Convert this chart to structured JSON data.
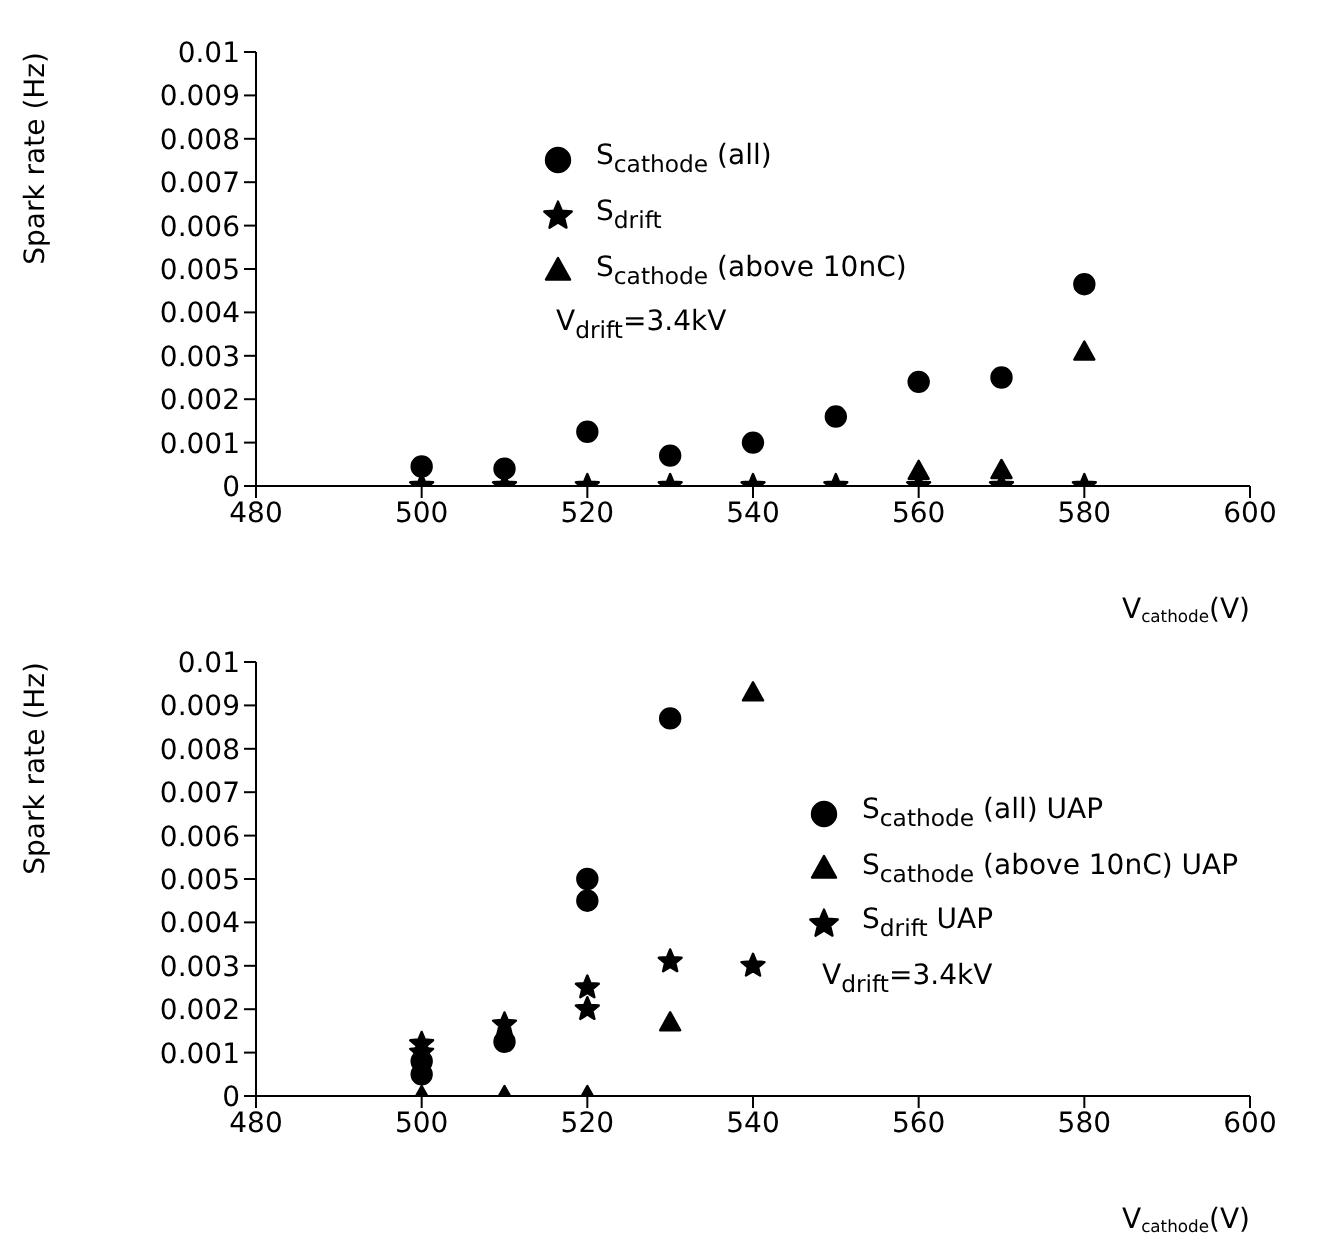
{
  "chart_data": [
    {
      "type": "scatter",
      "xlabel": "V$_{cathode}$(V)",
      "ylabel": "Spark rate (Hz)",
      "xlim": [
        480,
        600
      ],
      "xticks": [
        480,
        500,
        520,
        540,
        560,
        580,
        600
      ],
      "ylim": [
        0,
        0.01
      ],
      "yticks": [
        0,
        0.001,
        0.002,
        0.003,
        0.004,
        0.005,
        0.006,
        0.007,
        0.008,
        0.009,
        0.01
      ],
      "legend": "top left",
      "grid": false,
      "annotations": [
        "V$_{drift}$=3.4kV"
      ],
      "series": [
        {
          "name": "S$_{cathode}$ (all)",
          "color": "#000000",
          "marker": "circle",
          "x": [
            500,
            510,
            520,
            530,
            540,
            550,
            560,
            570,
            580
          ],
          "values": [
            0.00045,
            0.0004,
            0.00125,
            0.0007,
            0.001,
            0.0016,
            0.0024,
            0.0025,
            0.00465
          ]
        },
        {
          "name": "S$_{drift}$",
          "color": "#000000",
          "marker": "star",
          "x": [
            500,
            510,
            520,
            530,
            540,
            550,
            560,
            570,
            580
          ],
          "values": [
            0,
            0,
            0,
            0,
            0,
            0,
            0,
            0,
            0
          ]
        },
        {
          "name": "S$_{cathode}$ (above 10nC)",
          "color": "#000000",
          "marker": "triangle",
          "x": [
            560,
            570,
            580
          ],
          "values": [
            0.00035,
            0.00037,
            0.0031
          ]
        }
      ]
    },
    {
      "type": "scatter",
      "xlabel": "V$_{cathode}$(V)",
      "ylabel": "Spark rate (Hz)",
      "xlim": [
        480,
        600
      ],
      "xticks": [
        480,
        500,
        520,
        540,
        560,
        580,
        600
      ],
      "ylim": [
        0,
        0.01
      ],
      "yticks": [
        0,
        0.001,
        0.002,
        0.003,
        0.004,
        0.005,
        0.006,
        0.007,
        0.008,
        0.009,
        0.01
      ],
      "legend": "right",
      "grid": false,
      "annotations": [
        "V$_{drift}$=3.4kV"
      ],
      "series": [
        {
          "name": "S$_{cathode}$ (all) UAP",
          "color": "#000000",
          "marker": "circle",
          "x": [
            500,
            500,
            510,
            520,
            520,
            530
          ],
          "values": [
            0.0005,
            0.0008,
            0.00125,
            0.005,
            0.0045,
            0.0087
          ]
        },
        {
          "name": "S$_{cathode}$ (above 10nC) UAP",
          "color": "#000000",
          "marker": "triangle",
          "x": [
            500,
            510,
            520,
            530,
            540
          ],
          "values": [
            0,
            0,
            0,
            0.0017,
            0.0093
          ]
        },
        {
          "name": "S$_{drift}$ UAP",
          "color": "#000000",
          "marker": "star",
          "x": [
            500,
            500,
            510,
            520,
            520,
            530,
            540
          ],
          "values": [
            0.0012,
            0.001,
            0.00165,
            0.0025,
            0.002,
            0.0031,
            0.003
          ]
        }
      ]
    }
  ]
}
